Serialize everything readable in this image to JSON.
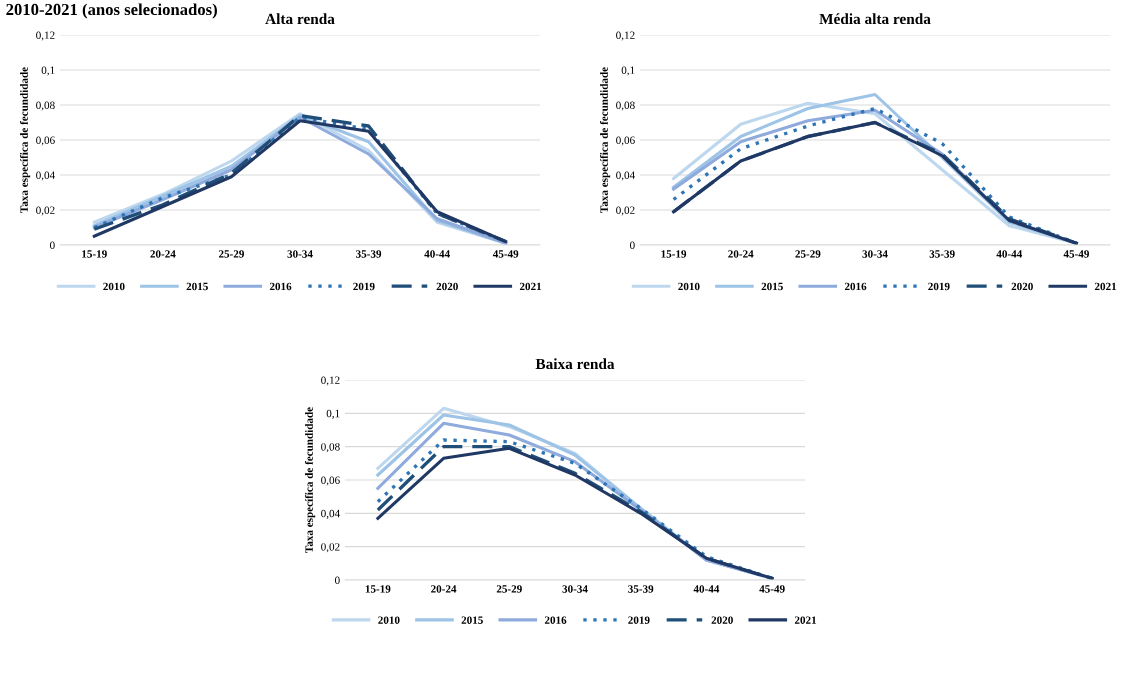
{
  "chart_data": [
    {
      "type": "line",
      "title": "Alta renda",
      "ylabel": "Taxa específica de fecundidade",
      "annotations": [
        "2010-2021 (anos selecionados)"
      ],
      "categories": [
        "15-19",
        "20-24",
        "25-29",
        "30-34",
        "35-39",
        "40-44",
        "45-49"
      ],
      "series": [
        {
          "name": "2010",
          "color": "#bdd7ee",
          "line_style": "solid",
          "values": [
            0.013,
            0.029,
            0.048,
            0.075,
            0.054,
            0.013,
            0.001
          ]
        },
        {
          "name": "2015",
          "color": "#9dc3e6",
          "line_style": "solid",
          "values": [
            0.011,
            0.028,
            0.045,
            0.074,
            0.059,
            0.014,
            0.001
          ]
        },
        {
          "name": "2016",
          "color": "#8faadc",
          "line_style": "solid",
          "values": [
            0.01,
            0.026,
            0.043,
            0.073,
            0.052,
            0.015,
            0.001
          ]
        },
        {
          "name": "2019",
          "color": "#2e75b6",
          "line_style": "dotted",
          "values": [
            0.01,
            0.027,
            0.04,
            0.073,
            0.066,
            0.018,
            0.002
          ]
        },
        {
          "name": "2020",
          "color": "#1f4e79",
          "line_style": "dashed",
          "values": [
            0.009,
            0.023,
            0.041,
            0.074,
            0.068,
            0.018,
            0.002
          ]
        },
        {
          "name": "2021",
          "color": "#203864",
          "line_style": "solid",
          "values": [
            0.005,
            0.022,
            0.039,
            0.071,
            0.065,
            0.019,
            0.002
          ]
        }
      ],
      "ylim": [
        0,
        0.12
      ],
      "yticks": [
        0,
        {
          "value": 0.02,
          "label": "0,02"
        },
        {
          "value": 0.04,
          "label": "0,04"
        },
        {
          "value": 0.06,
          "label": "0,06"
        },
        {
          "value": 0.08,
          "label": "0,08"
        },
        {
          "value": 0.1,
          "label": "0,1"
        },
        {
          "value": 0.12,
          "label": "0,12"
        }
      ],
      "grid": "y",
      "legend": "bottom",
      "marker": "none"
    },
    {
      "type": "line",
      "title": "Média alta renda",
      "ylabel": "Taxa específica de fecundidade",
      "categories": [
        "15-19",
        "20-24",
        "25-29",
        "30-34",
        "35-39",
        "40-44",
        "45-49"
      ],
      "series": [
        {
          "name": "2010",
          "color": "#bdd7ee",
          "line_style": "solid",
          "values": [
            0.038,
            0.069,
            0.081,
            0.075,
            0.043,
            0.011,
            0.001
          ]
        },
        {
          "name": "2015",
          "color": "#9dc3e6",
          "line_style": "solid",
          "values": [
            0.033,
            0.062,
            0.078,
            0.086,
            0.05,
            0.013,
            0.001
          ]
        },
        {
          "name": "2016",
          "color": "#8faadc",
          "line_style": "solid",
          "values": [
            0.032,
            0.059,
            0.071,
            0.077,
            0.052,
            0.014,
            0.001
          ]
        },
        {
          "name": "2019",
          "color": "#2e75b6",
          "line_style": "dotted",
          "values": [
            0.026,
            0.055,
            0.068,
            0.078,
            0.058,
            0.016,
            0.001
          ]
        },
        {
          "name": "2020",
          "color": "#1f4e79",
          "line_style": "dashed",
          "values": [
            0.019,
            0.048,
            0.062,
            0.07,
            0.052,
            0.015,
            0.001
          ]
        },
        {
          "name": "2021",
          "color": "#203864",
          "line_style": "solid",
          "values": [
            0.019,
            0.048,
            0.062,
            0.07,
            0.051,
            0.014,
            0.001
          ]
        }
      ],
      "ylim": [
        0,
        0.12
      ],
      "yticks": [
        0,
        {
          "value": 0.02,
          "label": "0,02"
        },
        {
          "value": 0.04,
          "label": "0,04"
        },
        {
          "value": 0.06,
          "label": "0,06"
        },
        {
          "value": 0.08,
          "label": "0,08"
        },
        {
          "value": 0.1,
          "label": "0,1"
        },
        {
          "value": 0.12,
          "label": "0,12"
        }
      ],
      "grid": "y",
      "legend": "bottom",
      "marker": "none"
    },
    {
      "type": "line",
      "title": "Baixa renda",
      "ylabel": "Taxa específica de fecundidade",
      "categories": [
        "15-19",
        "20-24",
        "25-29",
        "30-34",
        "35-39",
        "40-44",
        "45-49"
      ],
      "series": [
        {
          "name": "2010",
          "color": "#bdd7ee",
          "line_style": "solid",
          "values": [
            0.067,
            0.103,
            0.092,
            0.076,
            0.043,
            0.012,
            0.001
          ]
        },
        {
          "name": "2015",
          "color": "#9dc3e6",
          "line_style": "solid",
          "values": [
            0.063,
            0.099,
            0.093,
            0.075,
            0.043,
            0.012,
            0.001
          ]
        },
        {
          "name": "2016",
          "color": "#8faadc",
          "line_style": "solid",
          "values": [
            0.055,
            0.094,
            0.087,
            0.071,
            0.042,
            0.012,
            0.001
          ]
        },
        {
          "name": "2019",
          "color": "#2e75b6",
          "line_style": "dotted",
          "values": [
            0.047,
            0.084,
            0.083,
            0.07,
            0.043,
            0.014,
            0.001
          ]
        },
        {
          "name": "2020",
          "color": "#1f4e79",
          "line_style": "dashed",
          "values": [
            0.042,
            0.08,
            0.08,
            0.064,
            0.041,
            0.013,
            0.001
          ]
        },
        {
          "name": "2021",
          "color": "#203864",
          "line_style": "solid",
          "values": [
            0.037,
            0.073,
            0.079,
            0.063,
            0.04,
            0.013,
            0.001
          ]
        }
      ],
      "ylim": [
        0,
        0.12
      ],
      "yticks": [
        0,
        {
          "value": 0.02,
          "label": "0,02"
        },
        {
          "value": 0.04,
          "label": "0,04"
        },
        {
          "value": 0.06,
          "label": "0,06"
        },
        {
          "value": 0.08,
          "label": "0,08"
        },
        {
          "value": 0.1,
          "label": "0,1"
        },
        {
          "value": 0.12,
          "label": "0,12"
        }
      ],
      "grid": "y",
      "legend": "bottom",
      "marker": "none"
    }
  ]
}
